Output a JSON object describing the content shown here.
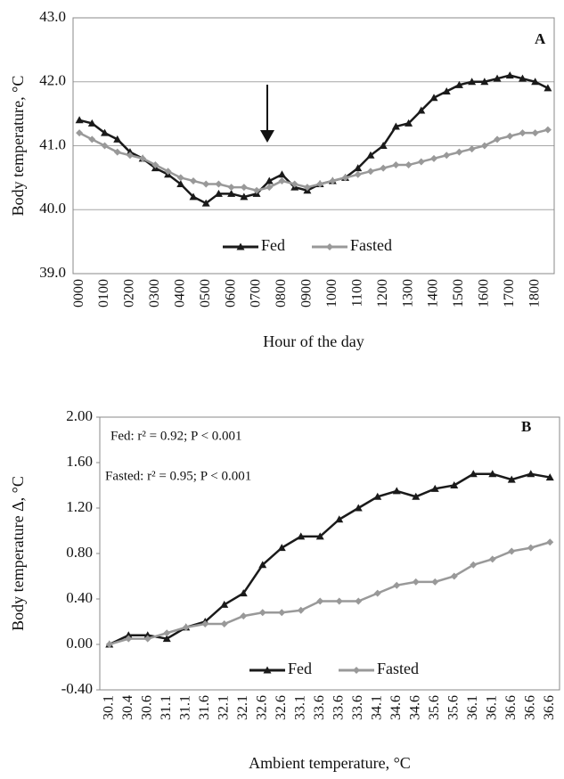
{
  "chart_data": [
    {
      "type": "line",
      "y_label": "Body temperature, °C",
      "x_label": "Hour of the day",
      "annotations": [
        {
          "text": "A"
        }
      ],
      "categories": [
        "0000",
        null,
        "0100",
        null,
        "0200",
        null,
        "0300",
        null,
        "0400",
        null,
        "0500",
        null,
        "0600",
        null,
        "0700",
        null,
        "0800",
        null,
        "0900",
        null,
        "1000",
        null,
        "1100",
        null,
        "1200",
        null,
        "1300",
        null,
        "1400",
        null,
        "1500",
        null,
        "1600",
        null,
        "1700",
        null,
        "1800",
        null
      ],
      "series": [
        {
          "name": "Fed",
          "color": "#1a1a1a",
          "marker": "triangle",
          "values": [
            41.4,
            41.35,
            41.2,
            41.1,
            40.9,
            40.8,
            40.65,
            40.55,
            40.4,
            40.2,
            40.1,
            40.25,
            40.25,
            40.2,
            40.25,
            40.45,
            40.55,
            40.35,
            40.3,
            40.4,
            40.45,
            40.5,
            40.65,
            40.85,
            41.0,
            41.3,
            41.35,
            41.55,
            41.75,
            41.85,
            41.95,
            42.0,
            42.0,
            42.05,
            42.1,
            42.05,
            42.0,
            41.9
          ]
        },
        {
          "name": "Fasted",
          "color": "#999999",
          "marker": "diamond",
          "values": [
            41.2,
            41.1,
            41.0,
            40.9,
            40.85,
            40.8,
            40.7,
            40.6,
            40.5,
            40.45,
            40.4,
            40.4,
            40.35,
            40.35,
            40.3,
            40.35,
            40.45,
            40.4,
            40.35,
            40.4,
            40.45,
            40.5,
            40.55,
            40.6,
            40.65,
            40.7,
            40.7,
            40.75,
            40.8,
            40.85,
            40.9,
            40.95,
            41.0,
            41.1,
            41.15,
            41.2,
            41.2,
            41.25
          ]
        }
      ],
      "ylim": [
        39,
        43
      ],
      "yticks": [
        {
          "value": 39,
          "label": "39.0"
        },
        {
          "value": 40,
          "label": "40.0"
        },
        {
          "value": 41,
          "label": "41.0"
        },
        {
          "value": 42,
          "label": "42.0"
        },
        {
          "value": 43,
          "label": "43.0"
        }
      ],
      "grid": true,
      "legend": "bottom"
    },
    {
      "type": "line",
      "y_label": "Body temperature Δ, °C",
      "x_label": "Ambient temperature, °C",
      "annotations": [
        {
          "text": "B"
        },
        {
          "text": "Fed: r² = 0.92; P < 0.001"
        },
        {
          "text": "Fasted: r² = 0.95; P < 0.001"
        }
      ],
      "categories": [
        "30.1",
        "30.4",
        "30.6",
        "31.1",
        "31.1",
        "31.6",
        "32.1",
        "32.1",
        "32.6",
        "32.6",
        "33.1",
        "33.6",
        "33.6",
        "33.6",
        "34.1",
        "34.6",
        "34.6",
        "35.6",
        "35.6",
        "36.1",
        "36.1",
        "36.6",
        "36.6",
        "36.6"
      ],
      "series": [
        {
          "name": "Fed",
          "color": "#1a1a1a",
          "marker": "triangle",
          "values": [
            0.0,
            0.08,
            0.08,
            0.05,
            0.15,
            0.2,
            0.35,
            0.45,
            0.7,
            0.85,
            0.95,
            0.95,
            1.1,
            1.2,
            1.3,
            1.35,
            1.3,
            1.37,
            1.4,
            1.5,
            1.5,
            1.45,
            1.5,
            1.47
          ]
        },
        {
          "name": "Fasted",
          "color": "#999999",
          "marker": "diamond",
          "values": [
            0.0,
            0.05,
            0.05,
            0.1,
            0.15,
            0.18,
            0.18,
            0.25,
            0.28,
            0.28,
            0.3,
            0.38,
            0.38,
            0.38,
            0.45,
            0.52,
            0.55,
            0.55,
            0.6,
            0.7,
            0.75,
            0.82,
            0.85,
            0.9
          ]
        }
      ],
      "ylim": [
        -0.4,
        2.0
      ],
      "yticks": [
        {
          "value": -0.4,
          "label": "-0.40"
        },
        {
          "value": 0,
          "label": "0.00"
        },
        {
          "value": 0.4,
          "label": "0.40"
        },
        {
          "value": 0.8,
          "label": "0.80"
        },
        {
          "value": 1.2,
          "label": "1.20"
        },
        {
          "value": 1.6,
          "label": "1.60"
        },
        {
          "value": 2.0,
          "label": "2.00"
        }
      ],
      "grid": false,
      "legend": "bottom"
    }
  ]
}
